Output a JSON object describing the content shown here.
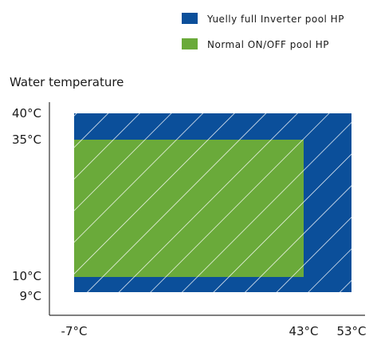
{
  "chart_data": {
    "type": "area",
    "ylabel": "Water temperature",
    "xlabel": "",
    "x_ticks": [
      {
        "value": -7,
        "label": "-7°C"
      },
      {
        "value": 43,
        "label": "43°C"
      },
      {
        "value": 53,
        "label": "53°C"
      }
    ],
    "y_ticks": [
      {
        "value": 40,
        "label": "40°C"
      },
      {
        "value": 35,
        "label": "35°C"
      },
      {
        "value": 10,
        "label": "10°C"
      },
      {
        "value": 9,
        "label": "9°C"
      }
    ],
    "series": [
      {
        "name": "Yuelly full Inverter pool HP",
        "color": "#0b4f9a",
        "x_range": [
          -7,
          53
        ],
        "y_range": [
          9,
          40
        ]
      },
      {
        "name": "Normal ON/OFF pool HP",
        "color": "#6aaa3a",
        "x_range": [
          -7,
          43
        ],
        "y_range": [
          10,
          35
        ]
      }
    ],
    "hatch": "white diagonal lines",
    "legend_position": "top-right",
    "grid": false
  }
}
